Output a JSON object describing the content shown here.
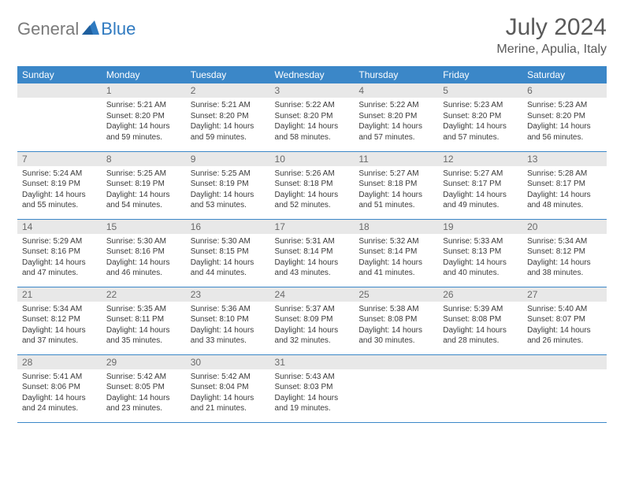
{
  "brand": {
    "part1": "General",
    "part2": "Blue"
  },
  "title": "July 2024",
  "location": "Merine, Apulia, Italy",
  "colors": {
    "header_bg": "#3b87c8",
    "header_text": "#ffffff",
    "daynum_bg": "#e8e8e8",
    "daynum_text": "#6a6a6a",
    "body_text": "#3a3a3a",
    "border": "#3b87c8",
    "title_text": "#5a5a5a",
    "logo_gray": "#7a7a7a",
    "logo_blue": "#2f7ac0",
    "page_bg": "#ffffff"
  },
  "typography": {
    "title_fontsize": 30,
    "location_fontsize": 16,
    "header_fontsize": 12,
    "daynum_fontsize": 12,
    "body_fontsize": 10
  },
  "weekdays": [
    "Sunday",
    "Monday",
    "Tuesday",
    "Wednesday",
    "Thursday",
    "Friday",
    "Saturday"
  ],
  "weeks": [
    [
      null,
      {
        "n": "1",
        "sr": "Sunrise: 5:21 AM",
        "ss": "Sunset: 8:20 PM",
        "dl": "Daylight: 14 hours and 59 minutes."
      },
      {
        "n": "2",
        "sr": "Sunrise: 5:21 AM",
        "ss": "Sunset: 8:20 PM",
        "dl": "Daylight: 14 hours and 59 minutes."
      },
      {
        "n": "3",
        "sr": "Sunrise: 5:22 AM",
        "ss": "Sunset: 8:20 PM",
        "dl": "Daylight: 14 hours and 58 minutes."
      },
      {
        "n": "4",
        "sr": "Sunrise: 5:22 AM",
        "ss": "Sunset: 8:20 PM",
        "dl": "Daylight: 14 hours and 57 minutes."
      },
      {
        "n": "5",
        "sr": "Sunrise: 5:23 AM",
        "ss": "Sunset: 8:20 PM",
        "dl": "Daylight: 14 hours and 57 minutes."
      },
      {
        "n": "6",
        "sr": "Sunrise: 5:23 AM",
        "ss": "Sunset: 8:20 PM",
        "dl": "Daylight: 14 hours and 56 minutes."
      }
    ],
    [
      {
        "n": "7",
        "sr": "Sunrise: 5:24 AM",
        "ss": "Sunset: 8:19 PM",
        "dl": "Daylight: 14 hours and 55 minutes."
      },
      {
        "n": "8",
        "sr": "Sunrise: 5:25 AM",
        "ss": "Sunset: 8:19 PM",
        "dl": "Daylight: 14 hours and 54 minutes."
      },
      {
        "n": "9",
        "sr": "Sunrise: 5:25 AM",
        "ss": "Sunset: 8:19 PM",
        "dl": "Daylight: 14 hours and 53 minutes."
      },
      {
        "n": "10",
        "sr": "Sunrise: 5:26 AM",
        "ss": "Sunset: 8:18 PM",
        "dl": "Daylight: 14 hours and 52 minutes."
      },
      {
        "n": "11",
        "sr": "Sunrise: 5:27 AM",
        "ss": "Sunset: 8:18 PM",
        "dl": "Daylight: 14 hours and 51 minutes."
      },
      {
        "n": "12",
        "sr": "Sunrise: 5:27 AM",
        "ss": "Sunset: 8:17 PM",
        "dl": "Daylight: 14 hours and 49 minutes."
      },
      {
        "n": "13",
        "sr": "Sunrise: 5:28 AM",
        "ss": "Sunset: 8:17 PM",
        "dl": "Daylight: 14 hours and 48 minutes."
      }
    ],
    [
      {
        "n": "14",
        "sr": "Sunrise: 5:29 AM",
        "ss": "Sunset: 8:16 PM",
        "dl": "Daylight: 14 hours and 47 minutes."
      },
      {
        "n": "15",
        "sr": "Sunrise: 5:30 AM",
        "ss": "Sunset: 8:16 PM",
        "dl": "Daylight: 14 hours and 46 minutes."
      },
      {
        "n": "16",
        "sr": "Sunrise: 5:30 AM",
        "ss": "Sunset: 8:15 PM",
        "dl": "Daylight: 14 hours and 44 minutes."
      },
      {
        "n": "17",
        "sr": "Sunrise: 5:31 AM",
        "ss": "Sunset: 8:14 PM",
        "dl": "Daylight: 14 hours and 43 minutes."
      },
      {
        "n": "18",
        "sr": "Sunrise: 5:32 AM",
        "ss": "Sunset: 8:14 PM",
        "dl": "Daylight: 14 hours and 41 minutes."
      },
      {
        "n": "19",
        "sr": "Sunrise: 5:33 AM",
        "ss": "Sunset: 8:13 PM",
        "dl": "Daylight: 14 hours and 40 minutes."
      },
      {
        "n": "20",
        "sr": "Sunrise: 5:34 AM",
        "ss": "Sunset: 8:12 PM",
        "dl": "Daylight: 14 hours and 38 minutes."
      }
    ],
    [
      {
        "n": "21",
        "sr": "Sunrise: 5:34 AM",
        "ss": "Sunset: 8:12 PM",
        "dl": "Daylight: 14 hours and 37 minutes."
      },
      {
        "n": "22",
        "sr": "Sunrise: 5:35 AM",
        "ss": "Sunset: 8:11 PM",
        "dl": "Daylight: 14 hours and 35 minutes."
      },
      {
        "n": "23",
        "sr": "Sunrise: 5:36 AM",
        "ss": "Sunset: 8:10 PM",
        "dl": "Daylight: 14 hours and 33 minutes."
      },
      {
        "n": "24",
        "sr": "Sunrise: 5:37 AM",
        "ss": "Sunset: 8:09 PM",
        "dl": "Daylight: 14 hours and 32 minutes."
      },
      {
        "n": "25",
        "sr": "Sunrise: 5:38 AM",
        "ss": "Sunset: 8:08 PM",
        "dl": "Daylight: 14 hours and 30 minutes."
      },
      {
        "n": "26",
        "sr": "Sunrise: 5:39 AM",
        "ss": "Sunset: 8:08 PM",
        "dl": "Daylight: 14 hours and 28 minutes."
      },
      {
        "n": "27",
        "sr": "Sunrise: 5:40 AM",
        "ss": "Sunset: 8:07 PM",
        "dl": "Daylight: 14 hours and 26 minutes."
      }
    ],
    [
      {
        "n": "28",
        "sr": "Sunrise: 5:41 AM",
        "ss": "Sunset: 8:06 PM",
        "dl": "Daylight: 14 hours and 24 minutes."
      },
      {
        "n": "29",
        "sr": "Sunrise: 5:42 AM",
        "ss": "Sunset: 8:05 PM",
        "dl": "Daylight: 14 hours and 23 minutes."
      },
      {
        "n": "30",
        "sr": "Sunrise: 5:42 AM",
        "ss": "Sunset: 8:04 PM",
        "dl": "Daylight: 14 hours and 21 minutes."
      },
      {
        "n": "31",
        "sr": "Sunrise: 5:43 AM",
        "ss": "Sunset: 8:03 PM",
        "dl": "Daylight: 14 hours and 19 minutes."
      },
      null,
      null,
      null
    ]
  ]
}
